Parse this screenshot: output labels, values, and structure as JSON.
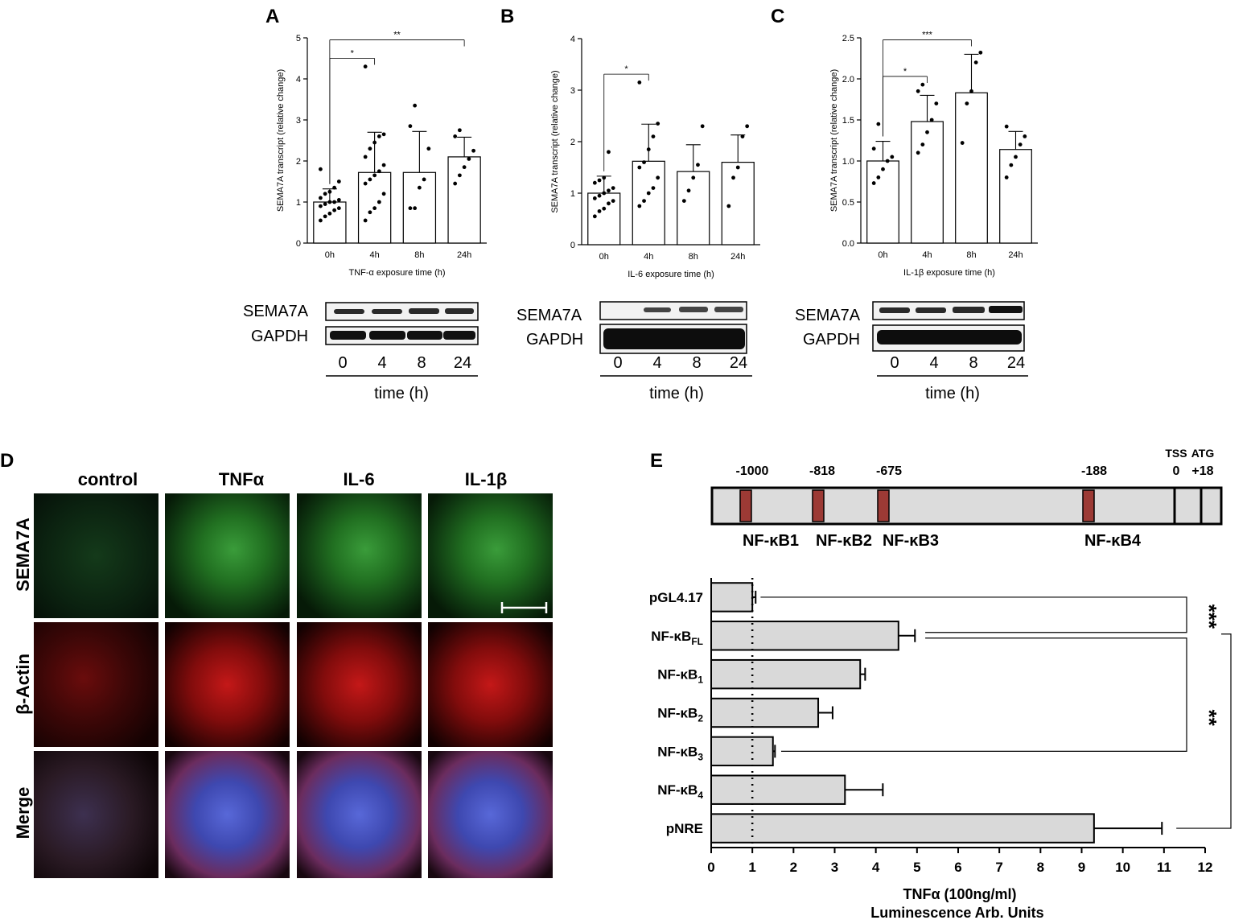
{
  "panels": {
    "A": "A",
    "B": "B",
    "C": "C",
    "D": "D",
    "E": "E"
  },
  "chart_data": [
    {
      "panel": "A",
      "type": "bar",
      "categories": [
        "0h",
        "4h",
        "8h",
        "24h"
      ],
      "values": [
        1.0,
        1.72,
        1.72,
        2.1
      ],
      "errors": [
        0.32,
        0.98,
        1.0,
        0.48
      ],
      "points": [
        [
          0.55,
          0.65,
          0.72,
          0.8,
          0.85,
          0.9,
          0.95,
          1.0,
          1.0,
          1.05,
          1.1,
          1.2,
          1.25,
          1.35,
          1.5,
          1.8
        ],
        [
          0.55,
          0.75,
          0.85,
          1.0,
          1.2,
          1.45,
          1.55,
          1.65,
          1.75,
          1.9,
          2.1,
          2.3,
          2.45,
          2.6,
          2.65,
          4.3
        ],
        [
          0.85,
          0.85,
          1.35,
          1.55,
          2.3,
          2.85,
          3.35
        ],
        [
          1.45,
          1.65,
          1.85,
          2.05,
          2.25,
          2.6,
          2.75
        ]
      ],
      "xlabel": "TNF-α exposure time (h)",
      "ylabel": "SEMA7A transcript (relative change)",
      "ylim": [
        0,
        5
      ],
      "yticks": [
        "0",
        "1",
        "2",
        "3",
        "4",
        "5"
      ],
      "significance": [
        {
          "from": 0,
          "to": 1,
          "label": "*"
        },
        {
          "from": 0,
          "to": 3,
          "label": "**"
        }
      ]
    },
    {
      "panel": "B",
      "type": "bar",
      "categories": [
        "0h",
        "4h",
        "8h",
        "24h"
      ],
      "values": [
        1.0,
        1.62,
        1.42,
        1.6
      ],
      "errors": [
        0.33,
        0.72,
        0.52,
        0.53
      ],
      "points": [
        [
          0.55,
          0.65,
          0.7,
          0.8,
          0.85,
          0.9,
          0.95,
          1.0,
          1.05,
          1.1,
          1.2,
          1.25,
          1.3,
          1.8
        ],
        [
          0.75,
          0.85,
          1.0,
          1.1,
          1.3,
          1.5,
          1.6,
          1.85,
          2.1,
          2.35,
          3.15
        ],
        [
          0.85,
          1.05,
          1.3,
          1.55,
          2.3
        ],
        [
          0.75,
          1.3,
          1.5,
          2.1,
          2.3
        ]
      ],
      "xlabel": "IL-6 exposure time (h)",
      "ylabel": "SEMA7A transcript (relative change)",
      "ylim": [
        0,
        4
      ],
      "yticks": [
        "0",
        "1",
        "2",
        "3",
        "4"
      ],
      "significance": [
        {
          "from": 0,
          "to": 1,
          "label": "*"
        }
      ]
    },
    {
      "panel": "C",
      "type": "bar",
      "categories": [
        "0h",
        "4h",
        "8h",
        "24h"
      ],
      "values": [
        1.0,
        1.48,
        1.83,
        1.14
      ],
      "errors": [
        0.24,
        0.32,
        0.47,
        0.22
      ],
      "points": [
        [
          0.73,
          0.8,
          0.9,
          1.0,
          1.05,
          1.15,
          1.45
        ],
        [
          1.1,
          1.2,
          1.35,
          1.5,
          1.7,
          1.85,
          1.93
        ],
        [
          1.22,
          1.7,
          1.85,
          2.2,
          2.32
        ],
        [
          0.8,
          0.95,
          1.05,
          1.2,
          1.3,
          1.42
        ]
      ],
      "xlabel": "IL-1β exposure time (h)",
      "ylabel": "SEMA7A transcript (relative change)",
      "ylim": [
        0,
        2.5
      ],
      "yticks": [
        "0.0",
        "0.5",
        "1.0",
        "1.5",
        "2.0",
        "2.5"
      ],
      "significance": [
        {
          "from": 0,
          "to": 1,
          "label": "*"
        },
        {
          "from": 0,
          "to": 2,
          "label": "***"
        }
      ]
    },
    {
      "panel": "E",
      "type": "bar",
      "orientation": "horizontal",
      "categories": [
        "pGL4.17",
        "NF-κB_FL",
        "NF-κB_1",
        "NF-κB_2",
        "NF-κB_3",
        "NF-κB_4",
        "pNRE"
      ],
      "values": [
        1.0,
        4.55,
        3.62,
        2.6,
        1.5,
        3.25,
        9.3
      ],
      "errors": [
        0.08,
        0.4,
        0.12,
        0.35,
        0.05,
        0.92,
        1.65
      ],
      "xlabel": "TNFα (100ng/ml)",
      "xlabel2": "Luminescence Arb. Units",
      "xlim": [
        0,
        12
      ],
      "xticks": [
        "0",
        "1",
        "2",
        "3",
        "4",
        "5",
        "6",
        "7",
        "8",
        "9",
        "10",
        "11",
        "12"
      ],
      "reference_line": 1,
      "significance": [
        {
          "rows": [
            0,
            1
          ],
          "label": "***"
        },
        {
          "rows": [
            1,
            4
          ],
          "label": "**"
        },
        {
          "rows": [
            1,
            6
          ],
          "label": "****"
        }
      ]
    }
  ],
  "blots": {
    "A": {
      "row1": "SEMA7A",
      "row2": "GAPDH",
      "lanes": [
        "0",
        "4",
        "8",
        "24"
      ],
      "xlabel": "time (h)"
    },
    "B": {
      "row1": "SEMA7A",
      "row2": "GAPDH",
      "lanes": [
        "0",
        "4",
        "8",
        "24"
      ],
      "xlabel": "time (h)"
    },
    "C": {
      "row1": "SEMA7A",
      "row2": "GAPDH",
      "lanes": [
        "0",
        "4",
        "8",
        "24"
      ],
      "xlabel": "time (h)"
    }
  },
  "panelD": {
    "columns": [
      "control",
      "TNFα",
      "IL-6",
      "IL-1β"
    ],
    "rows": [
      "SEMA7A",
      "β-Actin",
      "Merge"
    ]
  },
  "promoter": {
    "positions": [
      "-1000",
      "-818",
      "-675",
      "-188"
    ],
    "sites": [
      "NF-κB1",
      "NF-κB2",
      "NF-κB3",
      "NF-κB4"
    ],
    "tss_label": "TSS",
    "tss_pos": "0",
    "atg_label": "ATG",
    "atg_pos": "+18"
  },
  "colors": {
    "bar_fill_E": "#d9d9d9",
    "site_fill": "#9c3a35",
    "promoter_fill": "#dcdcdc"
  }
}
